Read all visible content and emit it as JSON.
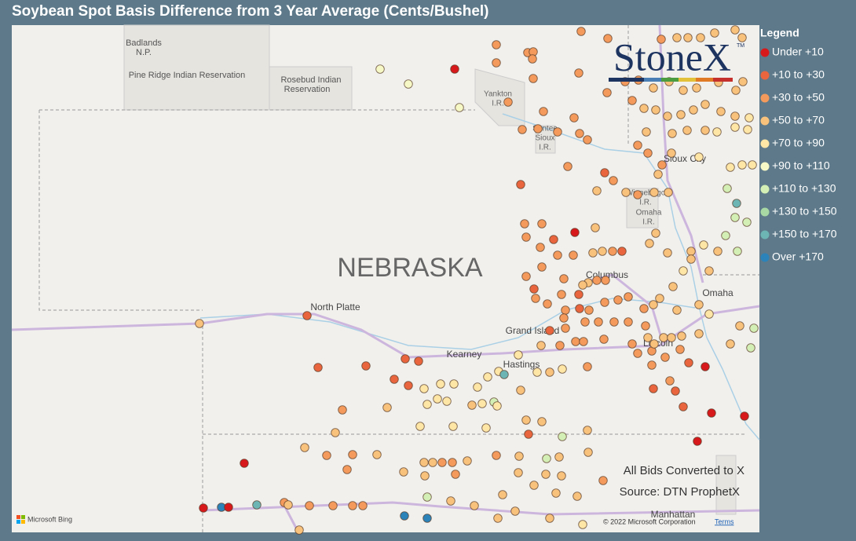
{
  "title": "Soybean Spot Basis Difference from 3 Year Average (Cents/Bushel)",
  "legend": {
    "title": "Legend",
    "items": [
      {
        "label": "Under +10",
        "color": "#d7191c"
      },
      {
        "label": "+10 to +30",
        "color": "#e8653d"
      },
      {
        "label": "+30 to +50",
        "color": "#f39a5c"
      },
      {
        "label": "+50 to +70",
        "color": "#f8c27c"
      },
      {
        "label": "+70 to +90",
        "color": "#fde6a6"
      },
      {
        "label": "+90 to +110",
        "color": "#f6f9c6"
      },
      {
        "label": "+110 to +130",
        "color": "#d4efb5"
      },
      {
        "label": "+130 to +150",
        "color": "#a8d9a4"
      },
      {
        "label": "+150 to +170",
        "color": "#6db5b4"
      },
      {
        "label": "Over +170",
        "color": "#2b83ba"
      }
    ]
  },
  "map_labels": {
    "badlands": [
      "Badlands",
      "N.P."
    ],
    "pine_ridge": "Pine Ridge Indian Reservation",
    "rosebud": [
      "Rosebud Indian",
      "Reservation"
    ],
    "yankton": [
      "Yankton",
      "I.R."
    ],
    "santee": [
      "Santee",
      "Sioux",
      "I.R."
    ],
    "sioux_city": "Sioux City",
    "winnebago": [
      "Winnebago",
      "I.R."
    ],
    "omaha_ir": [
      "Omaha",
      "I.R."
    ],
    "state": "NEBRASKA",
    "columbus": "Columbus",
    "north_platte": "North Platte",
    "grand_island": "Grand Island",
    "kearney": "Kearney",
    "hastings": "Hastings",
    "omaha": "Omaha",
    "lincoln": "Lincoln",
    "manhattan": "Manhattan"
  },
  "logo": {
    "name": "StoneX",
    "mark": "TM"
  },
  "notes": [
    "All Bids Converted to X",
    "Source: DTN ProphetX"
  ],
  "attribution": {
    "provider": "Microsoft Bing",
    "copyright": "© 2022 Microsoft Corporation",
    "terms": "Terms"
  }
}
